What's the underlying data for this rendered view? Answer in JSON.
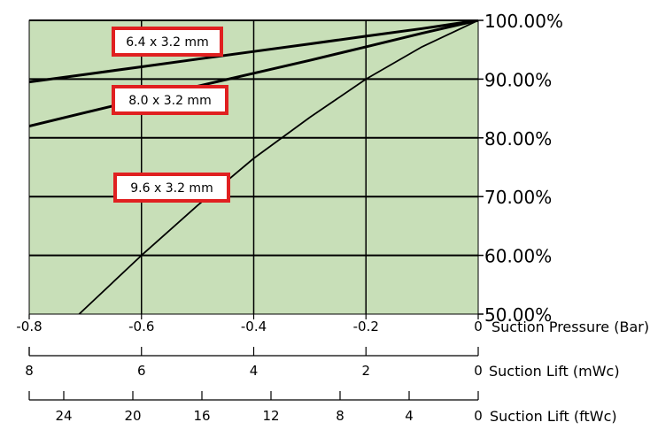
{
  "chart_data": {
    "type": "line",
    "title": "",
    "background_color": "#c8dfb8",
    "label_border_color": "#e02020",
    "x": [
      -0.8,
      -0.7,
      -0.6,
      -0.5,
      -0.4,
      -0.3,
      -0.2,
      -0.1,
      0
    ],
    "xlim": [
      -0.8,
      0
    ],
    "ylim": [
      50,
      100
    ],
    "y_unit": "%",
    "grid": true,
    "y_axis": {
      "position": "right",
      "ticks": [
        100,
        90,
        80,
        70,
        60,
        50
      ],
      "tick_labels": [
        "100.00%",
        "90.00%",
        "80.00%",
        "70.00%",
        "60.00%",
        "50.00%"
      ]
    },
    "x_axes": [
      {
        "label": "Suction Pressure (Bar)",
        "ticks": [
          -0.8,
          -0.6,
          -0.4,
          -0.2,
          0
        ],
        "tick_labels": [
          "-0.8",
          "-0.6",
          "-0.4",
          "-0.2",
          "0"
        ]
      },
      {
        "label": "Suction Lift (mWc)",
        "ticks": [
          8,
          6,
          4,
          2,
          0
        ],
        "tick_labels": [
          "8",
          "6",
          "4",
          "2",
          "0"
        ]
      },
      {
        "label": "Suction Lift (ftWc)",
        "ticks": [
          24,
          20,
          16,
          12,
          8,
          4,
          0
        ],
        "tick_labels": [
          "24",
          "20",
          "16",
          "12",
          "8",
          "4",
          "0"
        ]
      }
    ],
    "series": [
      {
        "name": "6.4 x 3.2 mm",
        "values": [
          89.5,
          90.8,
          92.1,
          93.4,
          94.7,
          96.0,
          97.3,
          98.6,
          100
        ]
      },
      {
        "name": "8.0 x 3.2 mm",
        "values": [
          82.0,
          84.3,
          86.6,
          88.8,
          91.0,
          93.2,
          95.5,
          97.8,
          100
        ]
      },
      {
        "name": "9.6 x 3.2 mm",
        "values": [
          42.0,
          51.0,
          60.0,
          68.5,
          76.5,
          83.5,
          90.0,
          95.5,
          100
        ]
      }
    ]
  }
}
